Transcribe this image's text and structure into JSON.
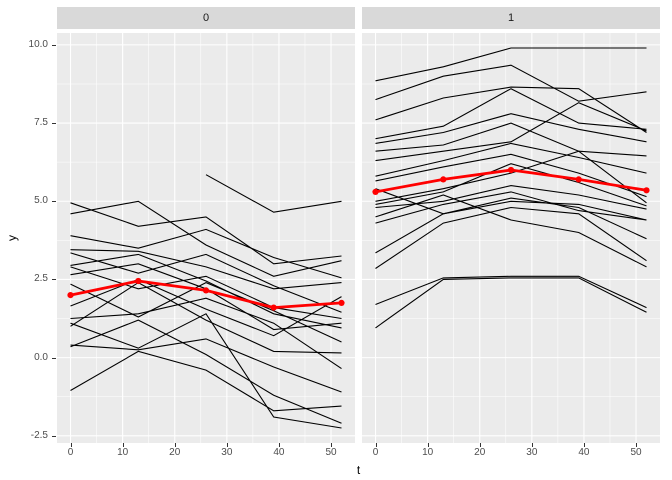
{
  "figure": {
    "x_axis_title": "t",
    "y_axis_title": "y",
    "colors": {
      "background": "#FFFFFF",
      "panel_bg": "#EBEBEB",
      "grid": "#FFFFFF",
      "strip_bg": "#D9D9D9",
      "strip_text": "#1A1A1A",
      "axis_text": "#4D4D4D",
      "tick_mark": "#333333",
      "line": "#000000",
      "mean_line": "#FF0000"
    }
  },
  "chart_data": {
    "type": "line",
    "title": "",
    "xlabel": "t",
    "ylabel": "y",
    "legend": "none",
    "grid": true,
    "x": [
      0,
      13,
      26,
      39,
      52
    ],
    "x_ticks": [
      0,
      10,
      20,
      30,
      40,
      50
    ],
    "x_tick_labels": [
      "0",
      "10",
      "20",
      "30",
      "40",
      "50"
    ],
    "x_minor": [
      5,
      15,
      25,
      35,
      45
    ],
    "y_ticks": [
      -2.5,
      0,
      2.5,
      5,
      7.5,
      10
    ],
    "y_tick_labels": [
      "-2.5",
      "0.0",
      "2.5",
      "5.0",
      "7.5",
      "10.0"
    ],
    "y_minor": [
      -1.25,
      1.25,
      3.75,
      6.25,
      8.75
    ],
    "xlim": [
      -2.6,
      54.6
    ],
    "ylim": [
      -2.73,
      10.38
    ],
    "facets": [
      {
        "label": "0",
        "series": [
          [
            4.95,
            4.2,
            4.5,
            3.0,
            3.25
          ],
          [
            4.6,
            5.0,
            3.6,
            2.6,
            3.1
          ],
          [
            3.9,
            3.5,
            4.1,
            3.2,
            2.55
          ],
          [
            3.45,
            3.4,
            2.9,
            2.2,
            2.4
          ],
          [
            3.35,
            2.7,
            3.3,
            2.3,
            1.45
          ],
          [
            2.95,
            3.3,
            2.45,
            1.4,
            0.95
          ],
          [
            2.9,
            2.2,
            2.6,
            1.6,
            1.25
          ],
          [
            2.65,
            3.0,
            2.2,
            0.9,
            1.1
          ],
          [
            2.35,
            1.3,
            2.4,
            1.5,
            0.5
          ],
          [
            1.65,
            2.5,
            1.55,
            0.7,
            1.95
          ],
          [
            1.25,
            1.4,
            1.9,
            1.1,
            -0.35
          ],
          [
            1.0,
            2.4,
            1.2,
            0.2,
            0.15
          ],
          [
            0.4,
            0.25,
            0.6,
            -0.3,
            -1.1
          ],
          [
            -1.05,
            0.2,
            -0.4,
            -1.7,
            -1.55
          ],
          [
            0.35,
            1.2,
            0.1,
            -1.2,
            -2.1
          ],
          [
            1.1,
            0.3,
            1.4,
            -1.9,
            -2.25
          ],
          [
            null,
            null,
            5.85,
            4.65,
            5.0
          ]
        ],
        "mean": [
          2.0,
          2.45,
          2.15,
          1.6,
          1.75
        ]
      },
      {
        "label": "1",
        "series": [
          [
            8.85,
            9.3,
            9.9,
            9.9,
            9.9
          ],
          [
            8.25,
            9.0,
            9.35,
            8.2,
            8.5
          ],
          [
            7.6,
            8.3,
            8.65,
            8.6,
            7.2
          ],
          [
            7.0,
            7.4,
            8.6,
            7.5,
            7.3
          ],
          [
            6.85,
            7.2,
            7.8,
            7.3,
            6.9
          ],
          [
            6.6,
            6.8,
            7.5,
            6.6,
            6.45
          ],
          [
            6.3,
            6.6,
            6.9,
            8.15,
            7.25
          ],
          [
            5.8,
            6.3,
            6.85,
            6.4,
            5.9
          ],
          [
            5.65,
            6.1,
            6.5,
            5.9,
            5.15
          ],
          [
            5.0,
            5.4,
            5.9,
            6.6,
            4.95
          ],
          [
            4.9,
            5.3,
            6.2,
            5.6,
            4.85
          ],
          [
            4.8,
            5.0,
            5.5,
            5.2,
            4.75
          ],
          [
            4.3,
            4.9,
            5.3,
            4.7,
            4.4
          ],
          [
            3.35,
            4.6,
            5.1,
            4.8,
            3.8
          ],
          [
            2.85,
            4.3,
            4.8,
            4.6,
            3.1
          ],
          [
            1.7,
            2.55,
            2.6,
            2.6,
            1.6
          ],
          [
            0.95,
            2.5,
            2.55,
            2.55,
            1.45
          ],
          [
            4.5,
            5.2,
            4.4,
            4.0,
            2.9
          ],
          [
            5.4,
            4.6,
            5.0,
            4.9,
            4.4
          ]
        ],
        "mean": [
          5.3,
          5.7,
          6.0,
          5.7,
          5.35
        ]
      }
    ]
  }
}
